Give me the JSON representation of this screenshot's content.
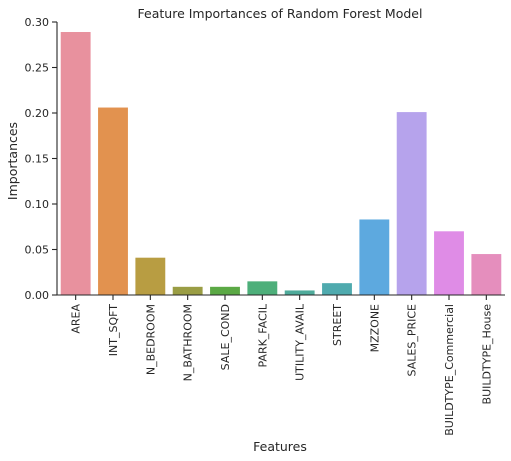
{
  "chart_data": {
    "type": "bar",
    "title": "Feature Importances of Random Forest Model",
    "xlabel": "Features",
    "ylabel": "Importances",
    "categories": [
      "AREA",
      "INT_SQFT",
      "N_BEDROOM",
      "N_BATHROOM",
      "SALE_COND",
      "PARK_FACIL",
      "UTILITY_AVAIL",
      "STREET",
      "MZZONE",
      "SALES_PRICE",
      "BUILDTYPE_Commercial",
      "BUILDTYPE_House"
    ],
    "values": [
      0.289,
      0.206,
      0.041,
      0.009,
      0.009,
      0.015,
      0.005,
      0.013,
      0.083,
      0.201,
      0.07,
      0.045
    ],
    "colors": [
      "#e8919e",
      "#e2924f",
      "#b89d42",
      "#9a9d44",
      "#5ba945",
      "#4daf7a",
      "#4fab9b",
      "#4faaae",
      "#5da9df",
      "#b6a3ec",
      "#df8ce6",
      "#e58ebd"
    ],
    "ylim": [
      0,
      0.3
    ],
    "yticks": [
      0.0,
      0.05,
      0.1,
      0.15,
      0.2,
      0.25,
      0.3
    ],
    "ytick_labels": [
      "0.00",
      "0.05",
      "0.10",
      "0.15",
      "0.20",
      "0.25",
      "0.30"
    ],
    "grid": false
  }
}
